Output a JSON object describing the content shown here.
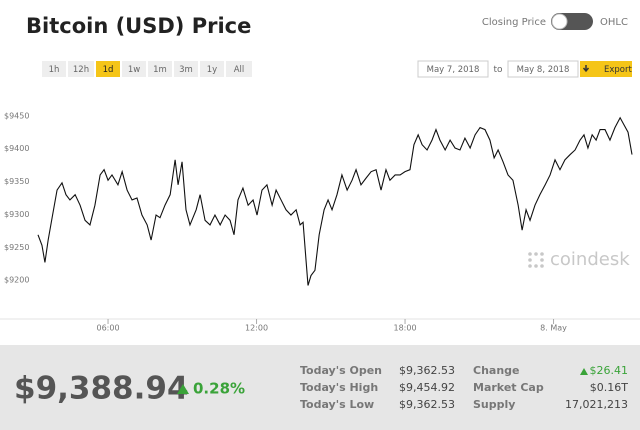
{
  "header": {
    "title": "Bitcoin (USD) Price",
    "toggle_left": "Closing Price",
    "toggle_right": "OHLC"
  },
  "controls": {
    "ranges": [
      "1h",
      "12h",
      "1d",
      "1w",
      "1m",
      "3m",
      "1y",
      "All"
    ],
    "active_range": 2,
    "date_from": "May 7, 2018",
    "date_sep": "to",
    "date_to": "May 8, 2018",
    "export": "Export"
  },
  "watermark": "coindesk",
  "chart_data": {
    "type": "line",
    "x": [
      3.17,
      3.33,
      3.45,
      3.58,
      3.74,
      3.94,
      4.14,
      4.3,
      4.46,
      4.67,
      4.87,
      5.07,
      5.27,
      5.47,
      5.68,
      5.84,
      6.0,
      6.16,
      6.4,
      6.57,
      6.77,
      6.97,
      7.17,
      7.37,
      7.58,
      7.74,
      7.94,
      8.1,
      8.3,
      8.51,
      8.71,
      8.83,
      8.99,
      9.15,
      9.31,
      9.56,
      9.72,
      9.92,
      10.12,
      10.32,
      10.53,
      10.73,
      10.93,
      11.09,
      11.25,
      11.45,
      11.66,
      11.86,
      12.02,
      12.22,
      12.42,
      12.63,
      12.79,
      12.99,
      13.19,
      13.39,
      13.6,
      13.76,
      13.88,
      14.0,
      14.08,
      14.2,
      14.36,
      14.53,
      14.73,
      14.89,
      15.05,
      15.25,
      15.45,
      15.66,
      15.86,
      16.02,
      16.22,
      16.42,
      16.63,
      16.83,
      17.03,
      17.23,
      17.39,
      17.6,
      17.8,
      18.0,
      18.2,
      18.36,
      18.53,
      18.69,
      18.89,
      19.09,
      19.25,
      19.41,
      19.62,
      19.82,
      20.02,
      20.22,
      20.42,
      20.63,
      20.83,
      21.03,
      21.23,
      21.43,
      21.6,
      21.76,
      21.96,
      22.16,
      22.36,
      22.57,
      22.73,
      22.89,
      23.05,
      23.25,
      23.45,
      23.66,
      23.86,
      24.06,
      24.26,
      24.46,
      24.67,
      24.87,
      25.07,
      25.23,
      25.39,
      25.56,
      25.72,
      25.88,
      26.08,
      26.28,
      26.48,
      26.69,
      26.85,
      27.01,
      27.17
    ],
    "series": [
      {
        "color": "#111111",
        "values": [
          9269,
          9253,
          9227,
          9261,
          9295,
          9337,
          9348,
          9330,
          9322,
          9330,
          9314,
          9291,
          9284,
          9314,
          9360,
          9368,
          9352,
          9360,
          9345,
          9365,
          9337,
          9322,
          9325,
          9299,
          9284,
          9261,
          9299,
          9295,
          9314,
          9330,
          9383,
          9345,
          9380,
          9307,
          9284,
          9307,
          9330,
          9291,
          9284,
          9299,
          9284,
          9299,
          9291,
          9269,
          9322,
          9340,
          9314,
          9322,
          9299,
          9337,
          9345,
          9314,
          9337,
          9322,
          9307,
          9299,
          9307,
          9284,
          9288,
          9230,
          9192,
          9207,
          9215,
          9269,
          9307,
          9322,
          9307,
          9330,
          9360,
          9337,
          9352,
          9368,
          9345,
          9355,
          9365,
          9368,
          9337,
          9368,
          9352,
          9360,
          9360,
          9365,
          9368,
          9406,
          9421,
          9406,
          9398,
          9413,
          9429,
          9413,
          9398,
          9413,
          9401,
          9398,
          9416,
          9401,
          9421,
          9432,
          9429,
          9413,
          9386,
          9398,
          9380,
          9360,
          9352,
          9314,
          9276,
          9307,
          9291,
          9314,
          9330,
          9345,
          9360,
          9383,
          9368,
          9383,
          9391,
          9398,
          9413,
          9421,
          9401,
          9421,
          9413,
          9429,
          9429,
          9413,
          9432,
          9447,
          9436,
          9425,
          9391
        ]
      }
    ],
    "xlim": [
      3.17,
      27.17
    ],
    "xticks": [
      {
        "value": 6,
        "label": "06:00"
      },
      {
        "value": 12,
        "label": "12:00"
      },
      {
        "value": 18,
        "label": "18:00"
      },
      {
        "value": 24,
        "label": "8. May"
      }
    ],
    "ylim": [
      9147,
      9474
    ],
    "yticks": [
      {
        "value": 9200,
        "label": "$9200"
      },
      {
        "value": 9250,
        "label": "$9250"
      },
      {
        "value": 9300,
        "label": "$9300"
      },
      {
        "value": 9350,
        "label": "$9350"
      },
      {
        "value": 9400,
        "label": "$9400"
      },
      {
        "value": 9450,
        "label": "$9450"
      }
    ],
    "grid": false
  },
  "summary": {
    "price": "$9,388.94",
    "change_pct": "0.28%",
    "stats": [
      [
        {
          "label": "Today's Open",
          "value": "$9,362.53"
        },
        {
          "label": "Change",
          "value": "$26.41"
        }
      ],
      [
        {
          "label": "Today's High",
          "value": "$9,454.92"
        },
        {
          "label": "Market Cap",
          "value": "$0.16T"
        }
      ],
      [
        {
          "label": "Today's Low",
          "value": "$9,362.53"
        },
        {
          "label": "Supply",
          "value": "17,021,213"
        }
      ]
    ]
  }
}
